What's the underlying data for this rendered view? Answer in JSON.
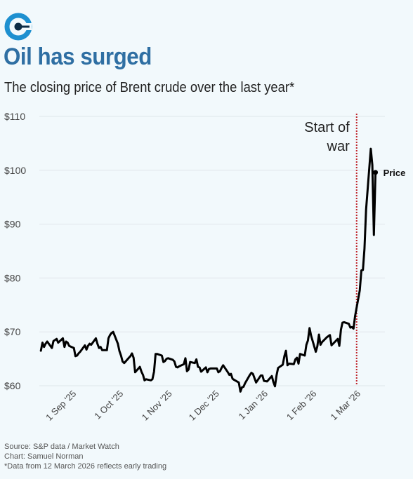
{
  "header": {
    "title": "Oil has surged",
    "subtitle": "The closing price of Brent crude over the last year*"
  },
  "footer": {
    "source": "Source: S&P data / Market Watch",
    "credit": "Chart: Samuel Norman",
    "note": "*Data from 12 March 2026 reflects early trading"
  },
  "colors": {
    "background": "#f2f9fc",
    "title": "#2f6fa3",
    "logo": "#1e90d0",
    "line": "#000000",
    "annotation_line": "#c0272d",
    "grid": "#dfe6ea"
  },
  "chart_data": {
    "type": "line",
    "ylim": [
      60,
      110
    ],
    "yticks": [
      60,
      70,
      80,
      90,
      100,
      110
    ],
    "ytick_labels": [
      "$60",
      "$70",
      "$80",
      "$90",
      "$100",
      "$110"
    ],
    "x_start": "2025-08-10",
    "x_end": "2026-03-18",
    "xticks": [
      "2025-09-01",
      "2025-10-01",
      "2025-11-01",
      "2025-12-01",
      "2026-01-01",
      "2026-02-01",
      "2026-03-01"
    ],
    "xtick_labels": [
      "1 Sep '25",
      "1 Oct '25",
      "1 Nov '25",
      "1 Dec '25",
      "1 Jan '26",
      "1 Feb '26",
      "1 Mar '26"
    ],
    "grid": true,
    "annotation": {
      "date": "2026-02-28",
      "label_line1": "Start of",
      "label_line2": "war"
    },
    "series": [
      {
        "name": "Price",
        "points": [
          [
            "2025-08-11",
            66.5
          ],
          [
            "2025-08-12",
            68.0
          ],
          [
            "2025-08-13",
            67.2
          ],
          [
            "2025-08-14",
            67.8
          ],
          [
            "2025-08-15",
            68.2
          ],
          [
            "2025-08-18",
            67.0
          ],
          [
            "2025-08-19",
            68.3
          ],
          [
            "2025-08-20",
            68.5
          ],
          [
            "2025-08-21",
            68.7
          ],
          [
            "2025-08-22",
            68.0
          ],
          [
            "2025-08-25",
            68.8
          ],
          [
            "2025-08-26",
            67.2
          ],
          [
            "2025-08-27",
            68.2
          ],
          [
            "2025-08-28",
            68.0
          ],
          [
            "2025-08-29",
            67.4
          ],
          [
            "2025-09-01",
            67.0
          ],
          [
            "2025-09-02",
            65.5
          ],
          [
            "2025-09-03",
            65.6
          ],
          [
            "2025-09-04",
            66.0
          ],
          [
            "2025-09-05",
            66.3
          ],
          [
            "2025-09-08",
            67.5
          ],
          [
            "2025-09-09",
            66.7
          ],
          [
            "2025-09-10",
            67.4
          ],
          [
            "2025-09-11",
            67.8
          ],
          [
            "2025-09-12",
            67.6
          ],
          [
            "2025-09-15",
            68.8
          ],
          [
            "2025-09-16",
            67.8
          ],
          [
            "2025-09-17",
            67.0
          ],
          [
            "2025-09-18",
            67.2
          ],
          [
            "2025-09-19",
            66.6
          ],
          [
            "2025-09-22",
            66.6
          ],
          [
            "2025-09-23",
            68.8
          ],
          [
            "2025-09-24",
            69.4
          ],
          [
            "2025-09-25",
            69.8
          ],
          [
            "2025-09-26",
            70.0
          ],
          [
            "2025-09-29",
            67.8
          ],
          [
            "2025-09-30",
            66.4
          ],
          [
            "2025-10-01",
            65.6
          ],
          [
            "2025-10-02",
            64.5
          ],
          [
            "2025-10-03",
            64.2
          ],
          [
            "2025-10-06",
            65.2
          ],
          [
            "2025-10-07",
            65.5
          ],
          [
            "2025-10-08",
            66.0
          ],
          [
            "2025-10-09",
            65.2
          ],
          [
            "2025-10-10",
            62.5
          ],
          [
            "2025-10-13",
            63.5
          ],
          [
            "2025-10-14",
            62.6
          ],
          [
            "2025-10-15",
            62.0
          ],
          [
            "2025-10-16",
            61.0
          ],
          [
            "2025-10-17",
            61.2
          ],
          [
            "2025-10-20",
            61.0
          ],
          [
            "2025-10-21",
            61.2
          ],
          [
            "2025-10-22",
            62.6
          ],
          [
            "2025-10-23",
            65.9
          ],
          [
            "2025-10-24",
            65.9
          ],
          [
            "2025-10-27",
            65.6
          ],
          [
            "2025-10-28",
            64.4
          ],
          [
            "2025-10-29",
            64.6
          ],
          [
            "2025-10-30",
            65.0
          ],
          [
            "2025-10-31",
            65.1
          ],
          [
            "2025-11-03",
            64.8
          ],
          [
            "2025-11-04",
            64.5
          ],
          [
            "2025-11-05",
            63.5
          ],
          [
            "2025-11-06",
            63.4
          ],
          [
            "2025-11-07",
            63.6
          ],
          [
            "2025-11-10",
            64.0
          ],
          [
            "2025-11-11",
            65.1
          ],
          [
            "2025-11-12",
            62.7
          ],
          [
            "2025-11-13",
            63.0
          ],
          [
            "2025-11-14",
            64.4
          ],
          [
            "2025-11-17",
            64.2
          ],
          [
            "2025-11-18",
            64.9
          ],
          [
            "2025-11-19",
            63.5
          ],
          [
            "2025-11-20",
            63.4
          ],
          [
            "2025-11-21",
            62.6
          ],
          [
            "2025-11-24",
            63.4
          ],
          [
            "2025-11-25",
            62.5
          ],
          [
            "2025-11-26",
            63.1
          ],
          [
            "2025-11-27",
            63.2
          ],
          [
            "2025-11-28",
            63.2
          ],
          [
            "2025-12-01",
            63.2
          ],
          [
            "2025-12-02",
            62.5
          ],
          [
            "2025-12-03",
            62.7
          ],
          [
            "2025-12-04",
            63.3
          ],
          [
            "2025-12-05",
            63.8
          ],
          [
            "2025-12-08",
            62.5
          ],
          [
            "2025-12-09",
            62.0
          ],
          [
            "2025-12-10",
            62.2
          ],
          [
            "2025-12-11",
            61.3
          ],
          [
            "2025-12-12",
            61.1
          ],
          [
            "2025-12-15",
            60.6
          ],
          [
            "2025-12-16",
            58.9
          ],
          [
            "2025-12-17",
            59.7
          ],
          [
            "2025-12-18",
            59.8
          ],
          [
            "2025-12-19",
            60.5
          ],
          [
            "2025-12-22",
            62.0
          ],
          [
            "2025-12-23",
            62.4
          ],
          [
            "2025-12-24",
            62.2
          ],
          [
            "2025-12-26",
            60.6
          ],
          [
            "2025-12-29",
            61.9
          ],
          [
            "2025-12-30",
            61.9
          ],
          [
            "2025-12-31",
            60.9
          ],
          [
            "2026-01-02",
            60.8
          ],
          [
            "2026-01-05",
            61.8
          ],
          [
            "2026-01-06",
            60.7
          ],
          [
            "2026-01-07",
            59.9
          ],
          [
            "2026-01-08",
            61.9
          ],
          [
            "2026-01-09",
            63.3
          ],
          [
            "2026-01-12",
            63.9
          ],
          [
            "2026-01-13",
            65.5
          ],
          [
            "2026-01-14",
            66.5
          ],
          [
            "2026-01-15",
            63.8
          ],
          [
            "2026-01-16",
            64.1
          ],
          [
            "2026-01-19",
            64.0
          ],
          [
            "2026-01-20",
            64.9
          ],
          [
            "2026-01-21",
            65.2
          ],
          [
            "2026-01-22",
            64.1
          ],
          [
            "2026-01-23",
            65.9
          ],
          [
            "2026-01-26",
            65.6
          ],
          [
            "2026-01-27",
            67.6
          ],
          [
            "2026-01-28",
            68.4
          ],
          [
            "2026-01-29",
            70.7
          ],
          [
            "2026-01-30",
            69.3
          ],
          [
            "2026-02-02",
            66.3
          ],
          [
            "2026-02-03",
            67.3
          ],
          [
            "2026-02-04",
            69.5
          ],
          [
            "2026-02-05",
            67.6
          ],
          [
            "2026-02-06",
            68.1
          ],
          [
            "2026-02-09",
            69.0
          ],
          [
            "2026-02-10",
            69.2
          ],
          [
            "2026-02-11",
            69.4
          ],
          [
            "2026-02-12",
            67.5
          ],
          [
            "2026-02-13",
            67.8
          ],
          [
            "2026-02-16",
            68.7
          ],
          [
            "2026-02-17",
            67.4
          ],
          [
            "2026-02-18",
            70.4
          ],
          [
            "2026-02-19",
            71.7
          ],
          [
            "2026-02-20",
            71.8
          ],
          [
            "2026-02-23",
            71.5
          ],
          [
            "2026-02-24",
            70.8
          ],
          [
            "2026-02-25",
            70.9
          ],
          [
            "2026-02-26",
            70.6
          ],
          [
            "2026-02-27",
            72.9
          ],
          [
            "2026-03-02",
            77.7
          ],
          [
            "2026-03-03",
            81.4
          ],
          [
            "2026-03-04",
            81.5
          ],
          [
            "2026-03-05",
            85.4
          ],
          [
            "2026-03-06",
            92.7
          ],
          [
            "2026-03-09",
            104.0
          ],
          [
            "2026-03-10",
            101.0
          ],
          [
            "2026-03-11",
            88.0
          ],
          [
            "2026-03-12",
            99.6
          ]
        ]
      }
    ]
  }
}
